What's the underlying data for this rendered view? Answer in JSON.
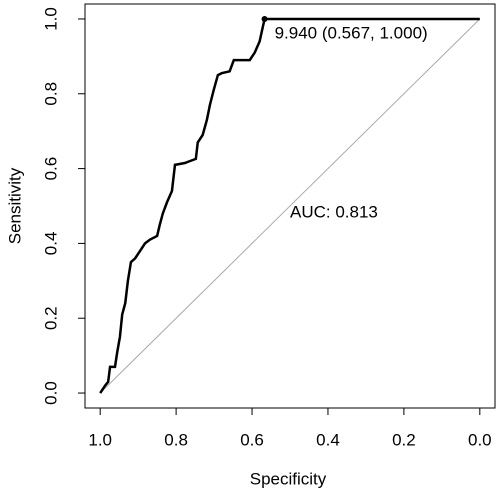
{
  "chart_data": {
    "type": "line",
    "xlabel": "Specificity",
    "ylabel": "Sensitivity",
    "x": [
      1.0,
      0.987,
      0.979,
      0.974,
      0.961,
      0.955,
      0.948,
      0.942,
      0.934,
      0.927,
      0.919,
      0.908,
      0.895,
      0.882,
      0.869,
      0.85,
      0.843,
      0.835,
      0.824,
      0.811,
      0.803,
      0.777,
      0.764,
      0.748,
      0.743,
      0.73,
      0.719,
      0.711,
      0.701,
      0.69,
      0.68,
      0.659,
      0.648,
      0.606,
      0.593,
      0.58,
      0.567,
      0.0
    ],
    "values": [
      0.0,
      0.02,
      0.03,
      0.07,
      0.07,
      0.11,
      0.15,
      0.21,
      0.24,
      0.3,
      0.35,
      0.36,
      0.38,
      0.4,
      0.41,
      0.42,
      0.45,
      0.48,
      0.51,
      0.54,
      0.61,
      0.615,
      0.62,
      0.626,
      0.67,
      0.69,
      0.73,
      0.77,
      0.81,
      0.85,
      0.855,
      0.86,
      0.89,
      0.89,
      0.91,
      0.94,
      1.0,
      1.0
    ],
    "color": "#000000",
    "highlight": {
      "x": 0.567,
      "y": 1.0,
      "label": "9.940 (0.567, 1.000)"
    },
    "auc_label": "AUC: 0.813",
    "xlim": [
      1.04,
      -0.04
    ],
    "ylim": [
      -0.04,
      1.04
    ],
    "xticks": [
      {
        "value": 1.0,
        "label": "1.0"
      },
      {
        "value": 0.8,
        "label": "0.8"
      },
      {
        "value": 0.6,
        "label": "0.6"
      },
      {
        "value": 0.4,
        "label": "0.4"
      },
      {
        "value": 0.2,
        "label": "0.2"
      },
      {
        "value": 0.0,
        "label": "0.0"
      }
    ],
    "yticks": [
      {
        "value": 0.0,
        "label": "0.0"
      },
      {
        "value": 0.2,
        "label": "0.2"
      },
      {
        "value": 0.4,
        "label": "0.4"
      },
      {
        "value": 0.6,
        "label": "0.6"
      },
      {
        "value": 0.8,
        "label": "0.8"
      },
      {
        "value": 1.0,
        "label": "1.0"
      }
    ]
  }
}
